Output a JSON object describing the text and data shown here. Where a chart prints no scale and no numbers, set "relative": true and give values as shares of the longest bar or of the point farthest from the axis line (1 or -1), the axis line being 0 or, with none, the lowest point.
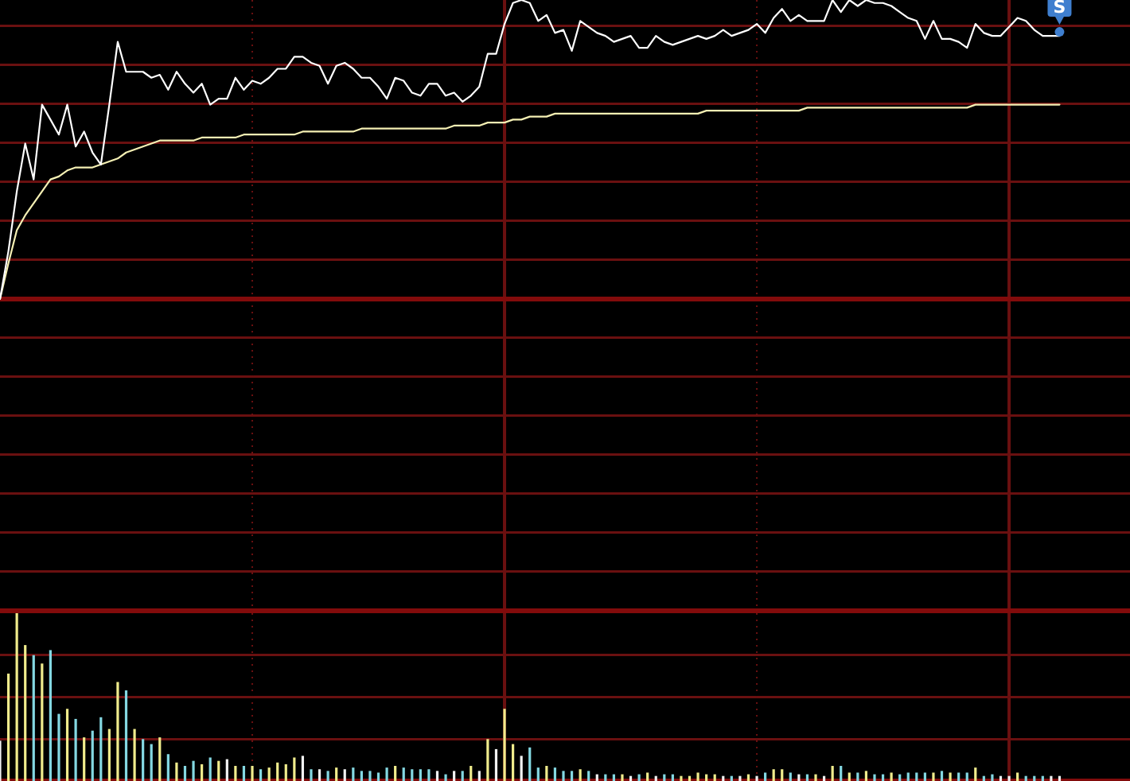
{
  "chart_data": [
    {
      "type": "line",
      "relative": true,
      "grid": true,
      "categories": [
        null,
        null,
        null,
        null,
        null,
        null,
        null,
        null,
        null,
        null,
        null,
        null,
        null,
        null,
        null,
        null,
        null,
        null,
        null,
        null,
        null,
        null,
        null,
        null,
        null,
        null,
        null,
        null,
        null,
        null,
        null,
        null,
        null,
        null,
        null,
        null,
        null,
        null,
        null,
        null,
        null,
        null,
        null,
        null,
        null,
        null,
        null,
        null,
        null,
        null,
        null,
        null,
        null,
        null,
        null,
        null,
        null,
        null,
        null,
        null,
        null,
        null,
        null,
        null,
        null,
        null,
        null,
        null,
        null,
        null,
        null,
        null,
        null,
        null,
        null,
        null,
        null,
        null,
        null,
        null,
        null,
        null,
        null,
        null,
        null,
        null,
        null,
        null,
        null,
        null,
        null,
        null,
        null,
        null,
        null,
        null,
        null,
        null,
        null,
        null,
        null,
        null,
        null,
        null,
        null,
        null,
        null,
        null,
        null,
        null,
        null,
        null,
        null,
        null,
        null,
        null,
        null,
        null,
        null,
        null,
        null,
        null,
        null,
        null,
        null,
        null,
        null,
        null,
        null,
        null,
        null,
        null,
        null,
        null,
        null
      ],
      "series": [
        {
          "color": "#ffffff",
          "values": [
            0,
            0.16,
            0.36,
            0.52,
            0.4,
            0.65,
            0.6,
            0.55,
            0.65,
            0.51,
            0.56,
            0.49,
            0.45,
            0.65,
            0.86,
            0.76,
            0.76,
            0.76,
            0.74,
            0.75,
            0.7,
            0.76,
            0.72,
            0.69,
            0.72,
            0.65,
            0.67,
            0.67,
            0.74,
            0.7,
            0.73,
            0.72,
            0.74,
            0.77,
            0.77,
            0.81,
            0.81,
            0.79,
            0.78,
            0.72,
            0.78,
            0.79,
            0.77,
            0.74,
            0.74,
            0.71,
            0.67,
            0.74,
            0.73,
            0.69,
            0.68,
            0.72,
            0.72,
            0.68,
            0.69,
            0.66,
            0.68,
            0.71,
            0.82,
            0.82,
            0.92,
            0.99,
            1,
            0.99,
            0.93,
            0.95,
            0.89,
            0.9,
            0.83,
            0.93,
            0.91,
            0.89,
            0.88,
            0.86,
            0.87,
            0.88,
            0.84,
            0.84,
            0.88,
            0.86,
            0.85,
            0.86,
            0.87,
            0.88,
            0.87,
            0.88,
            0.9,
            0.88,
            0.89,
            0.9,
            0.92,
            0.89,
            0.94,
            0.97,
            0.93,
            0.95,
            0.93,
            0.93,
            0.93,
            1,
            0.96,
            1,
            0.98,
            1,
            0.99,
            0.99,
            0.98,
            0.96,
            0.94,
            0.93,
            0.87,
            0.93,
            0.87,
            0.87,
            0.86,
            0.84,
            0.92,
            0.89,
            0.88,
            0.88,
            0.91,
            0.94,
            0.93,
            0.9,
            0.88,
            0.88,
            0.88,
            null,
            null,
            null,
            null,
            null,
            null,
            null,
            null
          ]
        },
        {
          "color": "#f5f0b4",
          "values": [
            0,
            0.12,
            0.23,
            0.28,
            0.32,
            0.36,
            0.4,
            0.41,
            0.43,
            0.44,
            0.44,
            0.44,
            0.45,
            0.46,
            0.47,
            0.49,
            0.5,
            0.51,
            0.52,
            0.53,
            0.53,
            0.53,
            0.53,
            0.53,
            0.54,
            0.54,
            0.54,
            0.54,
            0.54,
            0.55,
            0.55,
            0.55,
            0.55,
            0.55,
            0.55,
            0.55,
            0.56,
            0.56,
            0.56,
            0.56,
            0.56,
            0.56,
            0.56,
            0.57,
            0.57,
            0.57,
            0.57,
            0.57,
            0.57,
            0.57,
            0.57,
            0.57,
            0.57,
            0.57,
            0.58,
            0.58,
            0.58,
            0.58,
            0.59,
            0.59,
            0.59,
            0.6,
            0.6,
            0.61,
            0.61,
            0.61,
            0.62,
            0.62,
            0.62,
            0.62,
            0.62,
            0.62,
            0.62,
            0.62,
            0.62,
            0.62,
            0.62,
            0.62,
            0.62,
            0.62,
            0.62,
            0.62,
            0.62,
            0.62,
            0.63,
            0.63,
            0.63,
            0.63,
            0.63,
            0.63,
            0.63,
            0.63,
            0.63,
            0.63,
            0.63,
            0.63,
            0.64,
            0.64,
            0.64,
            0.64,
            0.64,
            0.64,
            0.64,
            0.64,
            0.64,
            0.64,
            0.64,
            0.64,
            0.64,
            0.64,
            0.64,
            0.64,
            0.64,
            0.64,
            0.64,
            0.64,
            0.65,
            0.65,
            0.65,
            0.65,
            0.65,
            0.65,
            0.65,
            0.65,
            0.65,
            0.65,
            0.65,
            null,
            null,
            null,
            null,
            null,
            null,
            null,
            null
          ]
        }
      ],
      "annotations": [
        {
          "text": "S",
          "y": 0.88
        }
      ]
    },
    {
      "type": "bar",
      "relative": true,
      "grid": true,
      "categories": [
        null,
        null,
        null,
        null,
        null,
        null,
        null,
        null,
        null,
        null,
        null,
        null,
        null,
        null,
        null,
        null,
        null,
        null,
        null,
        null,
        null,
        null,
        null,
        null,
        null,
        null,
        null,
        null,
        null,
        null,
        null,
        null,
        null,
        null,
        null,
        null,
        null,
        null,
        null,
        null,
        null,
        null,
        null,
        null,
        null,
        null,
        null,
        null,
        null,
        null,
        null,
        null,
        null,
        null,
        null,
        null,
        null,
        null,
        null,
        null,
        null,
        null,
        null,
        null,
        null,
        null,
        null,
        null,
        null,
        null,
        null,
        null,
        null,
        null,
        null,
        null,
        null,
        null,
        null,
        null,
        null,
        null,
        null,
        null,
        null,
        null,
        null,
        null,
        null,
        null,
        null,
        null,
        null,
        null,
        null,
        null,
        null,
        null,
        null,
        null,
        null,
        null,
        null,
        null,
        null,
        null,
        null,
        null,
        null,
        null,
        null,
        null,
        null,
        null,
        null,
        null,
        null,
        null,
        null,
        null,
        null,
        null,
        null,
        null,
        null,
        null,
        null,
        null,
        null,
        null,
        null,
        null,
        null,
        null,
        null
      ],
      "values": [
        0.24,
        0.64,
        1,
        0.81,
        0.75,
        0.7,
        0.78,
        0.4,
        0.43,
        0.37,
        0.26,
        0.3,
        0.38,
        0.31,
        0.59,
        0.54,
        0.31,
        0.25,
        0.22,
        0.26,
        0.16,
        0.11,
        0.09,
        0.12,
        0.1,
        0.14,
        0.12,
        0.13,
        0.09,
        0.09,
        0.09,
        0.07,
        0.08,
        0.11,
        0.1,
        0.14,
        0.15,
        0.07,
        0.07,
        0.06,
        0.08,
        0.07,
        0.08,
        0.06,
        0.06,
        0.05,
        0.08,
        0.09,
        0.08,
        0.07,
        0.07,
        0.07,
        0.06,
        0.04,
        0.06,
        0.06,
        0.09,
        0.06,
        0.25,
        0.19,
        0.43,
        0.22,
        0.15,
        0.2,
        0.08,
        0.09,
        0.08,
        0.06,
        0.06,
        0.07,
        0.06,
        0.04,
        0.04,
        0.04,
        0.04,
        0.03,
        0.04,
        0.05,
        0.03,
        0.04,
        0.04,
        0.03,
        0.03,
        0.05,
        0.04,
        0.04,
        0.03,
        0.03,
        0.03,
        0.04,
        0.03,
        0.05,
        0.07,
        0.07,
        0.05,
        0.04,
        0.04,
        0.04,
        0.03,
        0.09,
        0.09,
        0.05,
        0.05,
        0.06,
        0.04,
        0.04,
        0.05,
        0.04,
        0.05,
        0.05,
        0.05,
        0.05,
        0.06,
        0.05,
        0.05,
        0.05,
        0.08,
        0.03,
        0.04,
        0.03,
        0.03,
        0.05,
        0.03,
        0.03,
        0.03,
        0.03,
        0.03,
        null,
        null,
        null,
        null,
        null,
        null,
        null,
        null
      ],
      "colors": [
        "#f2f2f2",
        "#f0ec8c",
        "#f0ec8c",
        "#f0ec8c",
        "#84d8e2",
        "#f0ec8c",
        "#84d8e2",
        "#84d8e2",
        "#f0ec8c",
        "#84d8e2",
        "#f0ec8c",
        "#84d8e2",
        "#84d8e2",
        "#f0ec8c",
        "#f0ec8c",
        "#84d8e2",
        "#f0ec8c",
        "#84d8e2",
        "#84d8e2",
        "#f0ec8c",
        "#84d8e2",
        "#f0ec8c",
        "#84d8e2",
        "#84d8e2",
        "#f0ec8c",
        "#84d8e2",
        "#f0ec8c",
        "#f2f2f2",
        "#f0ec8c",
        "#84d8e2",
        "#f0ec8c",
        "#84d8e2",
        "#f0ec8c",
        "#f0ec8c",
        "#f0ec8c",
        "#f0ec8c",
        "#f2f2f2",
        "#84d8e2",
        "#f2f2f2",
        "#84d8e2",
        "#f0ec8c",
        "#f2f2f2",
        "#84d8e2",
        "#84d8e2",
        "#84d8e2",
        "#84d8e2",
        "#84d8e2",
        "#f0ec8c",
        "#84d8e2",
        "#84d8e2",
        "#84d8e2",
        "#84d8e2",
        "#f2f2f2",
        "#84d8e2",
        "#f2f2f2",
        "#84d8e2",
        "#f0ec8c",
        "#f2f2f2",
        "#f0ec8c",
        "#f2f2f2",
        "#f0ec8c",
        "#f0ec8c",
        "#f2f2f2",
        "#84d8e2",
        "#84d8e2",
        "#f0ec8c",
        "#84d8e2",
        "#84d8e2",
        "#84d8e2",
        "#f0ec8c",
        "#84d8e2",
        "#f2f2f2",
        "#84d8e2",
        "#84d8e2",
        "#f0ec8c",
        "#f2f2f2",
        "#84d8e2",
        "#f0ec8c",
        "#f2f2f2",
        "#84d8e2",
        "#84d8e2",
        "#f0ec8c",
        "#f0ec8c",
        "#f0ec8c",
        "#f0ec8c",
        "#f0ec8c",
        "#f2f2f2",
        "#84d8e2",
        "#f2f2f2",
        "#f0ec8c",
        "#f2f2f2",
        "#84d8e2",
        "#f0ec8c",
        "#f0ec8c",
        "#84d8e2",
        "#f2f2f2",
        "#84d8e2",
        "#f0ec8c",
        "#f2f2f2",
        "#f0ec8c",
        "#84d8e2",
        "#f0ec8c",
        "#84d8e2",
        "#f0ec8c",
        "#84d8e2",
        "#84d8e2",
        "#f0ec8c",
        "#84d8e2",
        "#84d8e2",
        "#84d8e2",
        "#84d8e2",
        "#f0ec8c",
        "#84d8e2",
        "#f0ec8c",
        "#84d8e2",
        "#84d8e2",
        "#f0ec8c",
        "#84d8e2",
        "#84d8e2",
        "#f2f2f2",
        "#f2f2f2",
        "#f0ec8c",
        "#84d8e2",
        "#84d8e2",
        "#84d8e2",
        "#f2f2f2",
        "#f2f2f2",
        null,
        null,
        null,
        null,
        null,
        null,
        null,
        null
      ]
    }
  ]
}
